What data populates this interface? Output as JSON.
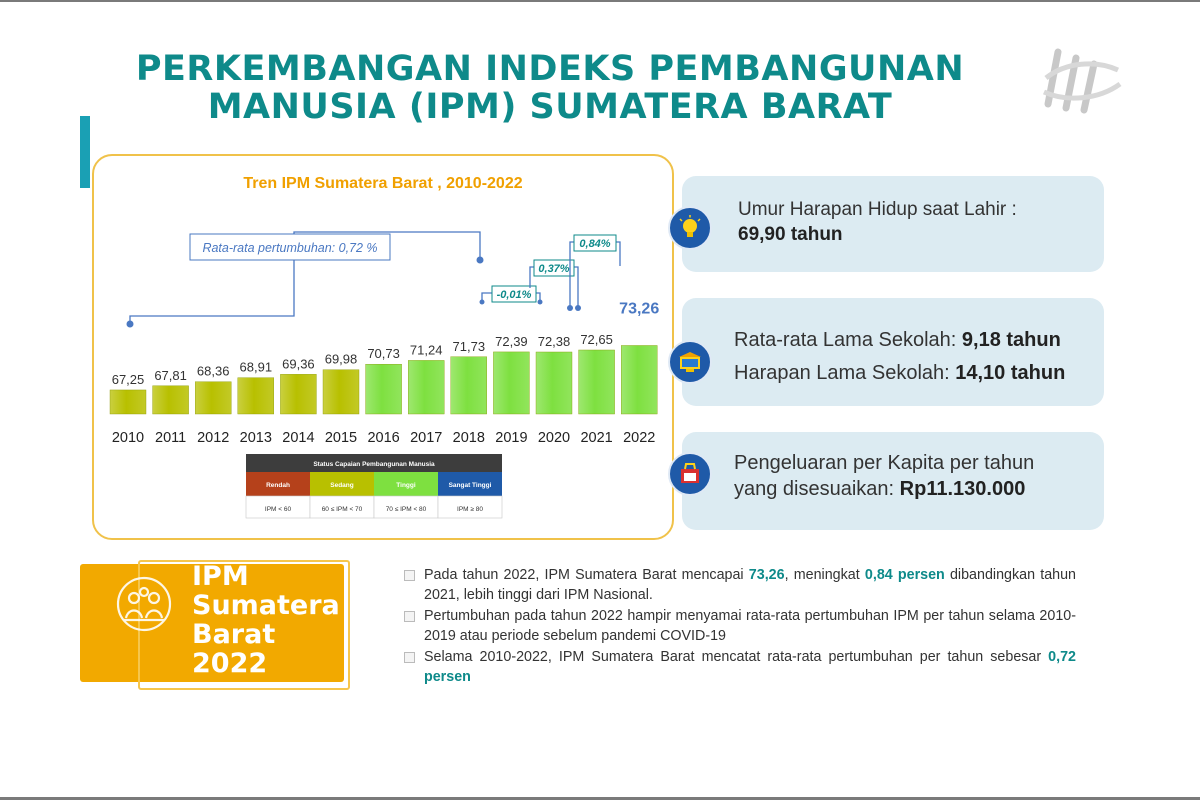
{
  "title_line1": "PERKEMBANGAN INDEKS PEMBANGUNAN",
  "title_line2": "MANUSIA (IPM) SUMATERA BARAT",
  "chart_data": {
    "type": "bar",
    "title": "Tren IPM Sumatera Barat , 2010-2022",
    "categories": [
      "2010",
      "2011",
      "2012",
      "2013",
      "2014",
      "2015",
      "2016",
      "2017",
      "2018",
      "2019",
      "2020",
      "2021",
      "2022"
    ],
    "values": [
      67.25,
      67.81,
      68.36,
      68.91,
      69.36,
      69.98,
      70.73,
      71.24,
      71.73,
      72.39,
      72.38,
      72.65,
      73.26
    ],
    "value_labels": [
      "67,25",
      "67,81",
      "68,36",
      "68,91",
      "69,36",
      "69,98",
      "70,73",
      "71,24",
      "71,73",
      "72,39",
      "72,38",
      "72,65",
      "73,26"
    ],
    "bar_colors": [
      "#b8c000",
      "#b8c000",
      "#b8c000",
      "#b8c000",
      "#b8c000",
      "#b8c000",
      "#7ee040",
      "#7ee040",
      "#7ee040",
      "#7ee040",
      "#7ee040",
      "#7ee040",
      "#7ee040"
    ],
    "annotations": {
      "avg_growth": "Rata-rata pertumbuhan: 0,72 %",
      "growth_2020": "-0,01%",
      "growth_2021": "0,37%",
      "growth_2022": "0,84%"
    },
    "legend": {
      "title": "Status Capaian Pembangunan Manusia",
      "categories": [
        {
          "label": "Rendah",
          "range": "IPM < 60",
          "color": "#b5411b"
        },
        {
          "label": "Sedang",
          "range": "60 ≤ IPM < 70",
          "color": "#b8c000"
        },
        {
          "label": "Tinggi",
          "range": "70 ≤ IPM < 80",
          "color": "#7ee040"
        },
        {
          "label": "Sangat Tinggi",
          "range": "IPM ≥ 80",
          "color": "#1f5aa8"
        }
      ]
    },
    "colors": {
      "sedang": "#b8c000",
      "tinggi": "#7ee040",
      "label_blue": "#4a78c2",
      "annotation_teal": "#0e8a8a"
    }
  },
  "info": {
    "box1_line1": "Umur Harapan Hidup saat Lahir :",
    "box1_line2": "69,90 tahun",
    "box2_label1": "Rata-rata Lama Sekolah: ",
    "box2_value1": "9,18 tahun",
    "box2_label2": "Harapan Lama Sekolah: ",
    "box2_value2": "14,10 tahun",
    "box3_line1": "Pengeluaran per Kapita per tahun",
    "box3_label2": "yang disesuaikan: ",
    "box3_value2": "Rp11.130.000",
    "icons": [
      "lightbulb-icon",
      "school-icon",
      "shopping-icon"
    ]
  },
  "ipm_box": {
    "line1": "IPM",
    "line2": "Sumatera",
    "line3": "Barat",
    "line4": "2022",
    "color": "#f2a900"
  },
  "bullets": {
    "b1_a": "Pada tahun 2022, IPM Sumatera Barat  mencapai ",
    "b1_v1": "73,26",
    "b1_b": ", meningkat ",
    "b1_v2": "0,84 persen",
    "b1_c": " dibandingkan tahun 2021, lebih tinggi dari IPM Nasional.",
    "b2": "Pertumbuhan pada tahun 2022 hampir menyamai rata-rata pertumbuhan IPM per tahun selama 2010-2019 atau periode sebelum pandemi COVID-19",
    "b3_a": "Selama 2010-2022, IPM Sumatera Barat  mencatat rata-rata pertumbuhan per tahun sebesar ",
    "b3_v": "0,72 persen"
  }
}
